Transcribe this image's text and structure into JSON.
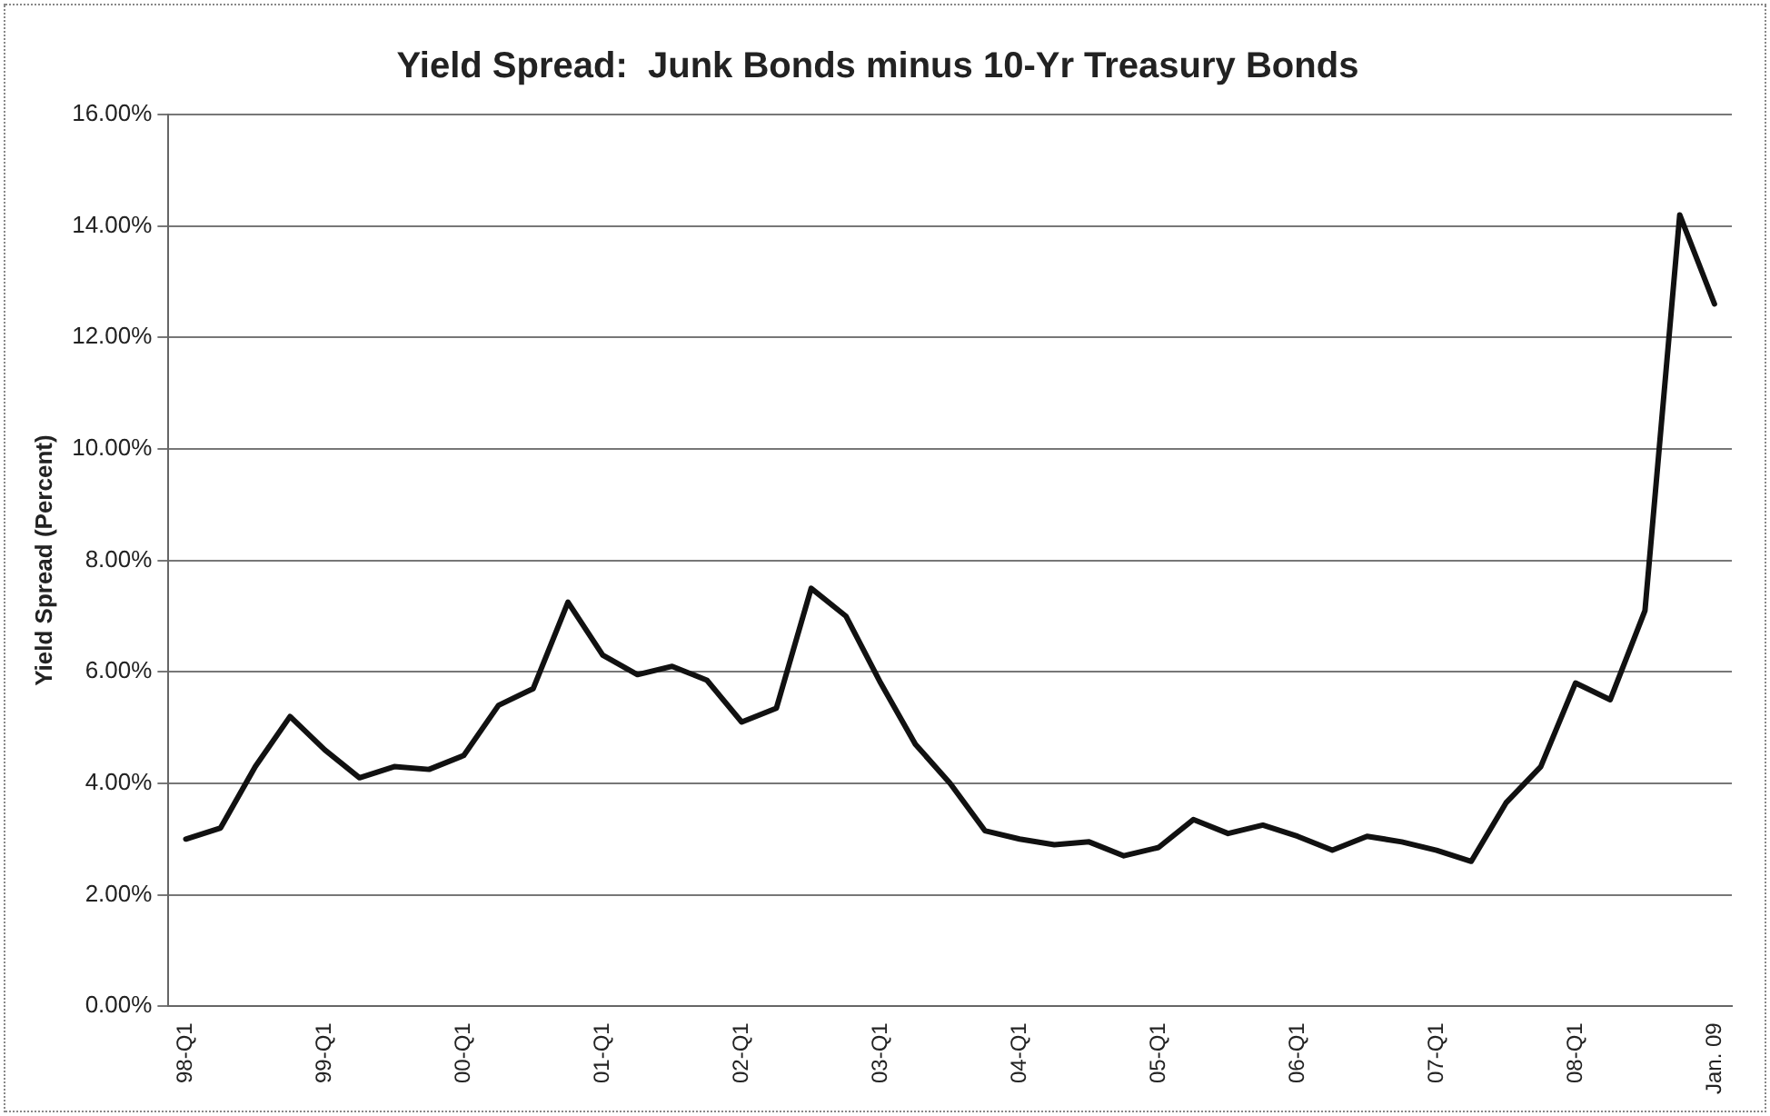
{
  "chart_data": {
    "type": "line",
    "title": "Yield Spread:  Junk Bonds minus 10-Yr Treasury Bonds",
    "ylabel": "Yield Spread (Percent)",
    "categories": [
      "98-Q1",
      null,
      null,
      null,
      "99-Q1",
      null,
      null,
      null,
      "00-Q1",
      null,
      null,
      null,
      "01-Q1",
      null,
      null,
      null,
      "02-Q1",
      null,
      null,
      null,
      "03-Q1",
      null,
      null,
      null,
      "04-Q1",
      null,
      null,
      null,
      "05-Q1",
      null,
      null,
      null,
      "06-Q1",
      null,
      null,
      null,
      "07-Q1",
      null,
      null,
      null,
      "08-Q1",
      null,
      null,
      null,
      "Jan. 09"
    ],
    "series": [
      {
        "color": "#111111",
        "values": [
          3.0,
          3.2,
          4.3,
          5.2,
          4.6,
          4.1,
          4.3,
          4.25,
          4.5,
          5.4,
          5.7,
          7.25,
          6.3,
          5.95,
          6.1,
          5.85,
          5.1,
          5.35,
          7.5,
          7.0,
          5.8,
          4.7,
          4.0,
          3.15,
          3.0,
          2.9,
          2.95,
          2.7,
          2.85,
          3.35,
          3.1,
          3.25,
          3.05,
          2.8,
          3.05,
          2.95,
          2.8,
          2.6,
          3.65,
          4.3,
          5.8,
          5.5,
          7.1,
          14.2,
          12.6
        ]
      }
    ],
    "ylim": [
      0,
      16
    ],
    "yticks": [
      {
        "value": 0,
        "label": "0.00%"
      },
      {
        "value": 2,
        "label": "2.00%"
      },
      {
        "value": 4,
        "label": "4.00%"
      },
      {
        "value": 6,
        "label": "6.00%"
      },
      {
        "value": 8,
        "label": "8.00%"
      },
      {
        "value": 10,
        "label": "10.00%"
      },
      {
        "value": 12,
        "label": "12.00%"
      },
      {
        "value": 14,
        "label": "14.00%"
      },
      {
        "value": 16,
        "label": "16.00%"
      }
    ],
    "grid": "y",
    "legend": false,
    "marker": "none",
    "line_style": "solid"
  }
}
